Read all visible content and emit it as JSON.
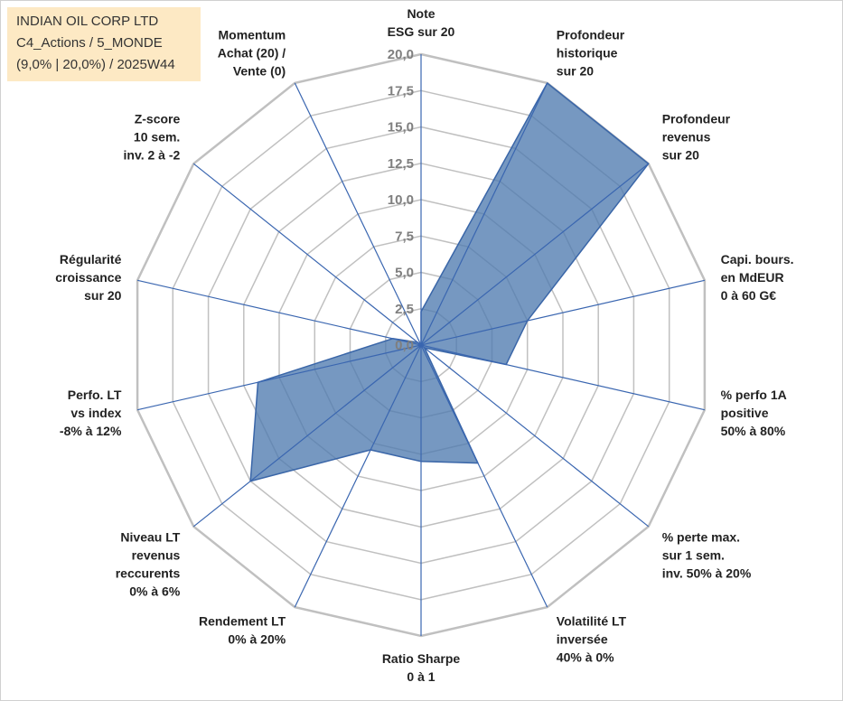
{
  "info": {
    "line1": "INDIAN OIL CORP LTD",
    "line2": "C4_Actions / 5_MONDE",
    "line3": "(9,0% | 20,0%) / 2025W44"
  },
  "colors": {
    "fill": "#4f7bb0",
    "stroke": "#3a66a8",
    "grid": "#c0c0c0",
    "spoke": "#3a66b0"
  },
  "chart_data": {
    "type": "radar",
    "rmin": 0,
    "rmax": 20,
    "tick_labels": [
      "0,0",
      "2,5",
      "5,0",
      "7,5",
      "10,0",
      "12,5",
      "15,0",
      "17,5",
      "20,0"
    ],
    "ticks": [
      0,
      2.5,
      5,
      7.5,
      10,
      12.5,
      15,
      17.5,
      20
    ],
    "grid_values": [
      2.5,
      5,
      7.5,
      10,
      12.5,
      15,
      17.5,
      20
    ],
    "axes": [
      {
        "lines": [
          "Note",
          "ESG sur 20"
        ]
      },
      {
        "lines": [
          "Profondeur",
          "historique",
          "sur 20"
        ]
      },
      {
        "lines": [
          "Profondeur",
          "revenus",
          "sur 20"
        ]
      },
      {
        "lines": [
          "Capi. bours.",
          "en MdEUR",
          "0 à 60 G€"
        ]
      },
      {
        "lines": [
          "% perfo 1A",
          "positive",
          "50% à 80%"
        ]
      },
      {
        "lines": [
          "% perte max.",
          "sur 1 sem.",
          "inv. 50% à 20%"
        ]
      },
      {
        "lines": [
          "Volatilité LT",
          "inversée",
          "40% à 0%"
        ]
      },
      {
        "lines": [
          "Ratio Sharpe",
          "0 à 1"
        ]
      },
      {
        "lines": [
          "Rendement LT",
          "0% à 20%"
        ]
      },
      {
        "lines": [
          "Niveau LT",
          "revenus",
          "reccurents",
          "0% à 6%"
        ]
      },
      {
        "lines": [
          "Perfo. LT",
          "vs index",
          "-8% à 12%"
        ]
      },
      {
        "lines": [
          "Régularité",
          "croissance",
          "sur 20"
        ]
      },
      {
        "lines": [
          "Z-score",
          "10 sem.",
          "inv. 2 à -2"
        ]
      },
      {
        "lines": [
          "Momentum",
          "Achat (20) /",
          "Vente (0)"
        ]
      }
    ],
    "values": [
      2.3,
      20,
      20,
      7.5,
      6.0,
      0.3,
      9.0,
      8.0,
      8.0,
      15.0,
      11.5,
      2.0,
      0.3,
      0
    ]
  }
}
